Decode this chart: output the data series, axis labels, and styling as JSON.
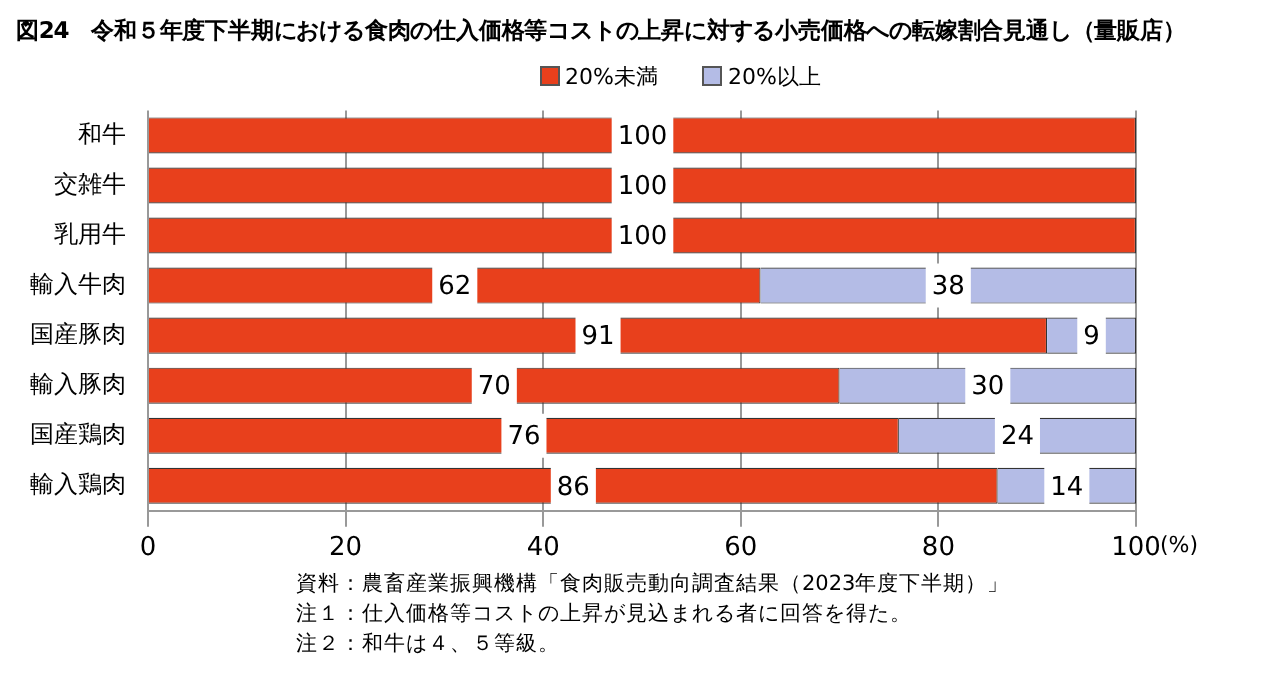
{
  "chart_data": {
    "type": "bar",
    "orientation": "horizontal",
    "stacked": true,
    "title": "図24　令和５年度下半期における食肉の仕入価格等コストの上昇に対する小売価格への転嫁割合見通し（量販店）",
    "categories": [
      "和牛",
      "交雑牛",
      "乳用牛",
      "輸入牛肉",
      "国産豚肉",
      "輸入豚肉",
      "国産鶏肉",
      "輸入鶏肉"
    ],
    "series": [
      {
        "name": "20%未満",
        "color": "#e8401c",
        "values": [
          100,
          100,
          100,
          62,
          91,
          70,
          76,
          86
        ]
      },
      {
        "name": "20%以上",
        "color": "#b4bce6",
        "values": [
          null,
          null,
          null,
          38,
          9,
          30,
          24,
          14
        ]
      }
    ],
    "xlim": [
      0,
      100
    ],
    "xticks": [
      0,
      20,
      40,
      60,
      80,
      100
    ],
    "xlabel": "(%)",
    "grid": "x",
    "legend": "top",
    "data_labels": true,
    "annotations": [
      "資料：農畜産業振興機構「食肉販売動向調査結果（2023年度下半期）」",
      "注１：仕入価格等コストの上昇が見込まれる者に回答を得た。",
      "注２：和牛は４、５等級。"
    ]
  }
}
